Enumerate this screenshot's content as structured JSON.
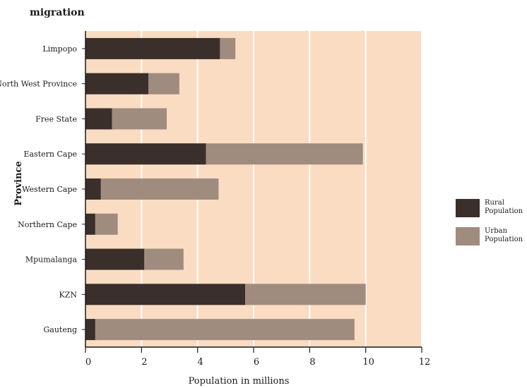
{
  "chart_data": {
    "type": "bar",
    "orientation": "horizontal",
    "stacked": true,
    "title": "migration",
    "title_prefix": "p",
    "xlabel": "Population in millions",
    "ylabel": "Province",
    "xlim": [
      0,
      12
    ],
    "xticks": [
      0,
      2,
      4,
      6,
      8,
      10,
      12
    ],
    "categories": [
      "Limpopo",
      "North West Province",
      "Free State",
      "Eastern Cape",
      "Western Cape",
      "Northern Cape",
      "Mpumalanga",
      "KZN",
      "Gauteng"
    ],
    "series": [
      {
        "name": "Rural Population",
        "color": "#3a2f2b",
        "values": [
          4.8,
          2.25,
          0.95,
          4.3,
          0.55,
          0.35,
          2.1,
          5.7,
          0.35
        ]
      },
      {
        "name": "Urban Population",
        "color": "#a08c7e",
        "values": [
          0.55,
          1.1,
          1.95,
          5.6,
          4.2,
          0.8,
          1.4,
          4.3,
          9.25
        ]
      }
    ],
    "plot_background": "#f9dcc2",
    "grid": "vertical",
    "legend_position": "right"
  }
}
